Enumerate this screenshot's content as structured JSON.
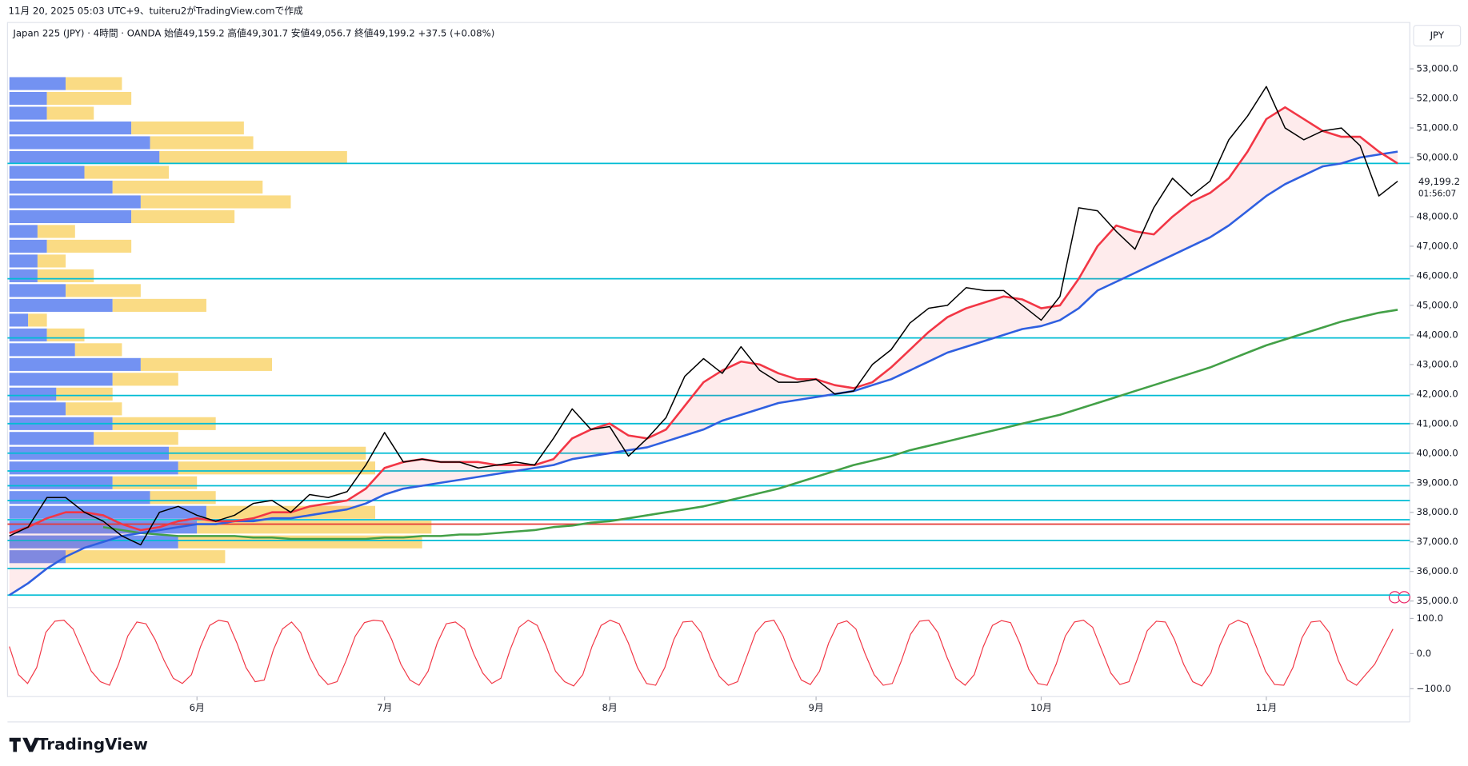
{
  "header": {
    "created": "11月 20, 2025 05:03 UTC+9、tuiteru2がTradingView.comで作成"
  },
  "legend": {
    "text": "Japan 225 (JPY) · 4時間 · OANDA  始値49,159.2  高値49,301.7  安値49,056.7  終値49,199.2  +37.5 (+0.08%)"
  },
  "currency": "JPY",
  "price_label": "49,199.2",
  "countdown": "01:56:07",
  "logo": "TradingView",
  "chart_data": [
    {
      "type": "line",
      "categories": [
        null,
        null,
        null,
        null,
        null,
        null,
        null,
        null,
        null,
        null,
        "6月",
        null,
        null,
        null,
        null,
        null,
        null,
        null,
        null,
        null,
        "7月",
        null,
        null,
        null,
        null,
        null,
        null,
        null,
        null,
        null,
        null,
        null,
        "8月",
        null,
        null,
        null,
        null,
        null,
        null,
        null,
        null,
        null,
        null,
        "9月",
        null,
        null,
        null,
        null,
        null,
        null,
        null,
        null,
        null,
        null,
        null,
        "10月",
        null,
        null,
        null,
        null,
        null,
        null,
        null,
        null,
        null,
        null,
        null,
        "11月",
        null,
        null,
        null,
        null,
        null,
        null,
        null
      ],
      "series": [
        {
          "color": "#000000",
          "values": [
            37200,
            37500,
            38500,
            38500,
            38000,
            37700,
            37200,
            36900,
            38000,
            38200,
            37900,
            37700,
            37900,
            38300,
            38400,
            38000,
            38600,
            38500,
            38700,
            39600,
            40700,
            39700,
            39800,
            39700,
            39700,
            39500,
            39600,
            39700,
            39600,
            40500,
            41500,
            40800,
            40900,
            39900,
            40500,
            41200,
            42600,
            43200,
            42700,
            43600,
            42800,
            42400,
            42400,
            42500,
            42000,
            42100,
            43000,
            43500,
            44400,
            44900,
            45000,
            45600,
            45500,
            45500,
            45000,
            44500,
            45300,
            48300,
            48200,
            47500,
            46900,
            48300,
            49300,
            48700,
            49200,
            50600,
            51400,
            52400,
            51000,
            50600,
            50900,
            51000,
            50400,
            48700,
            49199.2
          ]
        },
        {
          "color": "#f23645",
          "values": [
            37300,
            37500,
            37800,
            38000,
            38000,
            37900,
            37600,
            37400,
            37500,
            37700,
            37800,
            37700,
            37700,
            37800,
            38000,
            38000,
            38200,
            38300,
            38400,
            38800,
            39500,
            39700,
            39800,
            39700,
            39700,
            39700,
            39600,
            39600,
            39600,
            39800,
            40500,
            40800,
            41000,
            40600,
            40500,
            40800,
            41600,
            42400,
            42800,
            43100,
            43000,
            42700,
            42500,
            42500,
            42300,
            42200,
            42400,
            42900,
            43500,
            44100,
            44600,
            44900,
            45100,
            45300,
            45200,
            44900,
            45000,
            45900,
            47000,
            47700,
            47500,
            47400,
            48000,
            48500,
            48800,
            49300,
            50200,
            51300,
            51700,
            51300,
            50900,
            50700,
            50700,
            50200,
            49800
          ]
        },
        {
          "color": "#2f5fe0",
          "values": [
            35200,
            35600,
            36100,
            36500,
            36800,
            37000,
            37200,
            37300,
            37400,
            37500,
            37600,
            37600,
            37700,
            37700,
            37800,
            37800,
            37900,
            38000,
            38100,
            38300,
            38600,
            38800,
            38900,
            39000,
            39100,
            39200,
            39300,
            39400,
            39500,
            39600,
            39800,
            39900,
            40000,
            40100,
            40200,
            40400,
            40600,
            40800,
            41100,
            41300,
            41500,
            41700,
            41800,
            41900,
            42000,
            42100,
            42300,
            42500,
            42800,
            43100,
            43400,
            43600,
            43800,
            44000,
            44200,
            44300,
            44500,
            44900,
            45500,
            45800,
            46100,
            46400,
            46700,
            47000,
            47300,
            47700,
            48200,
            48700,
            49100,
            49400,
            49700,
            49800,
            50000,
            50100,
            50200
          ]
        },
        {
          "color": "#43a047",
          "values": [
            null,
            null,
            null,
            null,
            null,
            37500,
            37400,
            37300,
            37250,
            37200,
            37200,
            37200,
            37200,
            37150,
            37150,
            37100,
            37100,
            37100,
            37100,
            37100,
            37150,
            37150,
            37200,
            37200,
            37250,
            37250,
            37300,
            37350,
            37400,
            37500,
            37550,
            37650,
            37700,
            37800,
            37900,
            38000,
            38100,
            38200,
            38350,
            38500,
            38650,
            38800,
            39000,
            39200,
            39400,
            39600,
            39750,
            39900,
            40100,
            40250,
            40400,
            40550,
            40700,
            40850,
            41000,
            41150,
            41300,
            41500,
            41700,
            41900,
            42100,
            42300,
            42500,
            42700,
            42900,
            43150,
            43400,
            43650,
            43850,
            44050,
            44250,
            44450,
            44600,
            44750,
            44850
          ]
        }
      ],
      "levels": [
        {
          "value": 49800,
          "color": "#00bcd4"
        },
        {
          "value": 45900,
          "color": "#00bcd4"
        },
        {
          "value": 43900,
          "color": "#00bcd4"
        },
        {
          "value": 41950,
          "color": "#00bcd4"
        },
        {
          "value": 41000,
          "color": "#00bcd4"
        },
        {
          "value": 40000,
          "color": "#00bcd4"
        },
        {
          "value": 39400,
          "color": "#00bcd4"
        },
        {
          "value": 38900,
          "color": "#00bcd4"
        },
        {
          "value": 38400,
          "color": "#00bcd4"
        },
        {
          "value": 37750,
          "color": "#00bcd4"
        },
        {
          "value": 37600,
          "color": "#e53935"
        },
        {
          "value": 37050,
          "color": "#00bcd4"
        },
        {
          "value": 36100,
          "color": "#00bcd4"
        },
        {
          "value": 35200,
          "color": "#00bcd4"
        }
      ],
      "volume_profile": {
        "prices": [
          36500,
          37000,
          37500,
          38000,
          38500,
          39000,
          39500,
          40000,
          40500,
          41000,
          41500,
          42000,
          42500,
          43000,
          43500,
          44000,
          44500,
          45000,
          45500,
          46000,
          46500,
          47000,
          47500,
          48000,
          48500,
          49000,
          49500,
          50000,
          50500,
          51000,
          51500,
          52000,
          52500
        ],
        "up": [
          60,
          180,
          200,
          210,
          150,
          110,
          180,
          170,
          90,
          110,
          60,
          50,
          110,
          140,
          70,
          40,
          20,
          110,
          60,
          30,
          30,
          40,
          30,
          130,
          140,
          110,
          80,
          160,
          150,
          130,
          40,
          40,
          60
        ],
        "down": [
          170,
          260,
          250,
          180,
          70,
          90,
          210,
          210,
          90,
          110,
          60,
          60,
          70,
          140,
          50,
          40,
          20,
          100,
          80,
          60,
          30,
          90,
          40,
          110,
          160,
          160,
          90,
          200,
          110,
          120,
          50,
          90,
          60
        ],
        "up_color": "#5b7ff0",
        "down_color": "#f9d56e"
      },
      "ylim": [
        34780,
        53900
      ],
      "yticks": [
        {
          "value": 35000,
          "label": "35,000.0"
        },
        {
          "value": 36000,
          "label": "36,000.0"
        },
        {
          "value": 37000,
          "label": "37,000.0"
        },
        {
          "value": 38000,
          "label": "38,000.0"
        },
        {
          "value": 39000,
          "label": "39,000.0"
        },
        {
          "value": 40000,
          "label": "40,000.0"
        },
        {
          "value": 41000,
          "label": "41,000.0"
        },
        {
          "value": 42000,
          "label": "42,000.0"
        },
        {
          "value": 43000,
          "label": "43,000.0"
        },
        {
          "value": 44000,
          "label": "44,000.0"
        },
        {
          "value": 45000,
          "label": "45,000.0"
        },
        {
          "value": 46000,
          "label": "46,000.0"
        },
        {
          "value": 47000,
          "label": "47,000.0"
        },
        {
          "value": 48000,
          "label": "48,000.0"
        },
        {
          "value": 50000,
          "label": "50,000.0"
        },
        {
          "value": 51000,
          "label": "51,000.0"
        },
        {
          "value": 52000,
          "label": "52,000.0"
        },
        {
          "value": 53000,
          "label": "53,000.0"
        }
      ]
    },
    {
      "type": "line",
      "color": "#f23645",
      "values": [
        20,
        -60,
        -85,
        -40,
        60,
        92,
        95,
        70,
        10,
        -50,
        -80,
        -90,
        -30,
        50,
        90,
        85,
        40,
        -20,
        -70,
        -85,
        -60,
        20,
        80,
        95,
        90,
        30,
        -40,
        -80,
        -75,
        10,
        70,
        90,
        60,
        -10,
        -60,
        -88,
        -80,
        -20,
        50,
        88,
        95,
        92,
        40,
        -30,
        -75,
        -90,
        -50,
        30,
        85,
        90,
        70,
        0,
        -55,
        -85,
        -70,
        10,
        75,
        95,
        80,
        20,
        -50,
        -80,
        -92,
        -60,
        20,
        80,
        95,
        85,
        30,
        -40,
        -85,
        -90,
        -40,
        40,
        90,
        92,
        60,
        -10,
        -65,
        -90,
        -80,
        -10,
        60,
        90,
        95,
        50,
        -20,
        -75,
        -88,
        -50,
        30,
        85,
        93,
        70,
        0,
        -60,
        -90,
        -85,
        -20,
        55,
        92,
        95,
        60,
        -10,
        -70,
        -90,
        -60,
        20,
        80,
        94,
        88,
        30,
        -45,
        -85,
        -90,
        -30,
        50,
        90,
        95,
        75,
        10,
        -55,
        -88,
        -80,
        -10,
        65,
        92,
        90,
        40,
        -30,
        -80,
        -92,
        -55,
        25,
        82,
        95,
        85,
        20,
        -50,
        -88,
        -90,
        -40,
        45,
        90,
        93,
        60,
        -20,
        -75,
        -90,
        -60,
        -30,
        20,
        70
      ],
      "ylim": [
        -125,
        115
      ],
      "yticks": [
        {
          "value": 100,
          "label": "100.0"
        },
        {
          "value": 0,
          "label": "0.0"
        },
        {
          "value": -100,
          "label": "−100.0"
        }
      ]
    }
  ]
}
